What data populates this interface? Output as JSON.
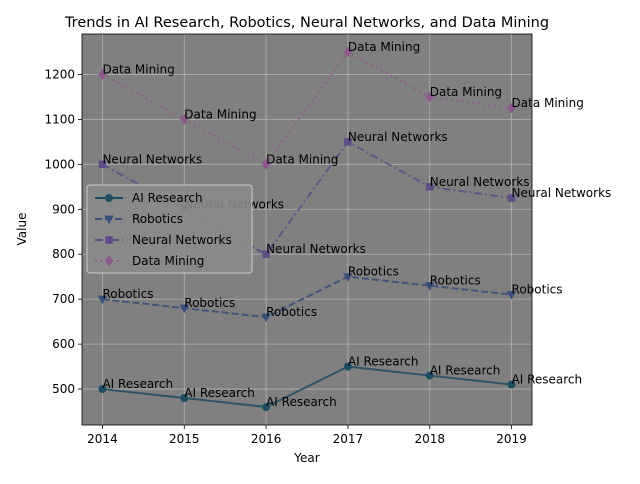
{
  "chart_data": {
    "type": "line",
    "title": "Trends in AI Research, Robotics, Neural Networks, and Data Mining",
    "xlabel": "Year",
    "ylabel": "Value",
    "x": [
      2014,
      2015,
      2016,
      2017,
      2018,
      2019
    ],
    "xlim": [
      2013.75,
      2019.25
    ],
    "ylim": [
      420,
      1290
    ],
    "yticks": [
      500,
      600,
      700,
      800,
      900,
      1000,
      1100,
      1200
    ],
    "grid": true,
    "legend_position": "center-left",
    "background_color": "#808080",
    "series": [
      {
        "name": "AI Research",
        "values": [
          500,
          480,
          460,
          550,
          530,
          510
        ],
        "color": "#1f4e63",
        "line_style": "solid",
        "marker": "circle"
      },
      {
        "name": "Robotics",
        "values": [
          700,
          680,
          660,
          750,
          730,
          710
        ],
        "color": "#3a4f7a",
        "line_style": "dashed",
        "marker": "triangle-down"
      },
      {
        "name": "Neural Networks",
        "values": [
          1000,
          900,
          800,
          1050,
          950,
          925
        ],
        "color": "#5e4d87",
        "line_style": "dashdot",
        "marker": "square"
      },
      {
        "name": "Data Mining",
        "values": [
          1200,
          1100,
          1000,
          1250,
          1150,
          1125
        ],
        "color": "#8e5a8e",
        "line_style": "dotted",
        "marker": "diamond"
      }
    ]
  }
}
